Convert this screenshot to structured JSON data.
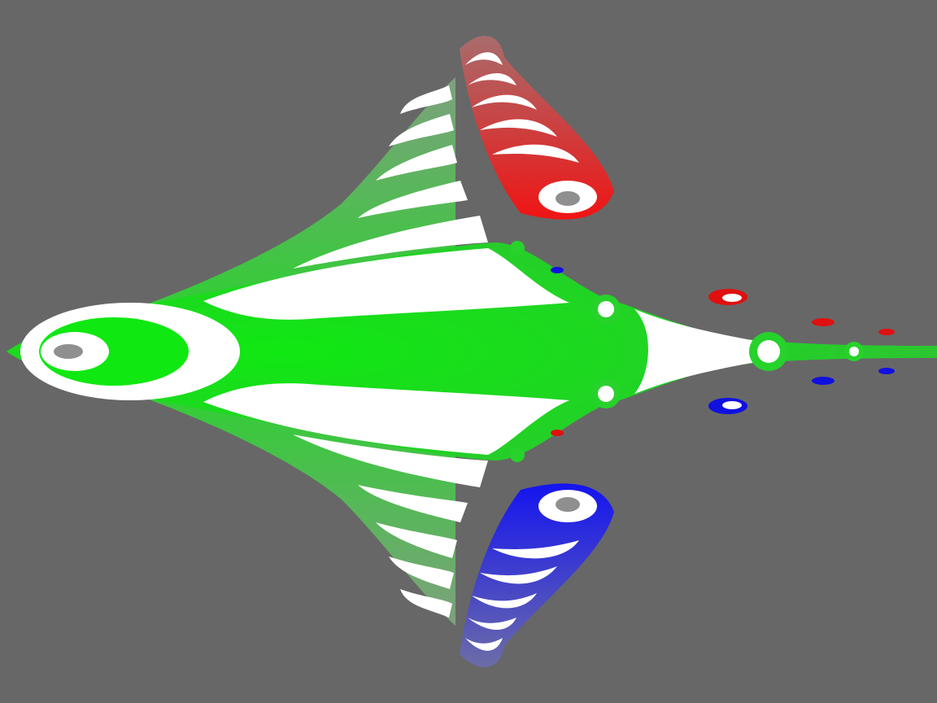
{
  "scene": {
    "subject": "fractal",
    "background_color": "#676767",
    "colors": {
      "green_main": "#27d22b",
      "green_bright": "#0ee80f",
      "green_dim": "#5aa55c",
      "stripe": "#ffffff",
      "red": "#ee1010",
      "red_dim": "#a06a6a",
      "blue": "#1010ee",
      "blue_dim": "#6a6aa0",
      "hole": "#8f8f8f"
    }
  }
}
